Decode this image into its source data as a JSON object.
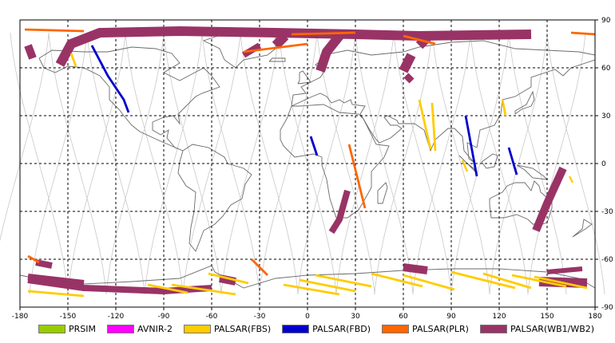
{
  "chart_data": {
    "type": "map",
    "projection": "equirectangular",
    "xlim": [
      -180,
      180
    ],
    "ylim": [
      -90,
      90
    ],
    "x_ticks": [
      -180,
      -150,
      -120,
      -90,
      -60,
      -30,
      0,
      30,
      60,
      90,
      120,
      150,
      180
    ],
    "y_ticks": [
      -90,
      -60,
      -30,
      0,
      30,
      60,
      90
    ],
    "grid": true,
    "legend_position": "bottom",
    "legend": [
      {
        "name": "PRSIM",
        "color": "#99cc00"
      },
      {
        "name": "AVNIR-2",
        "color": "#ff00ff"
      },
      {
        "name": "PALSAR(FBS)",
        "color": "#ffcc00"
      },
      {
        "name": "PALSAR(FBD)",
        "color": "#0000cc"
      },
      {
        "name": "PALSAR(PLR)",
        "color": "#ff6600"
      },
      {
        "name": "PALSAR(WB1/WB2)",
        "color": "#993366"
      }
    ],
    "swaths": [
      {
        "mode": "PALSAR(WB1/WB2)",
        "path": [
          [
            -155,
            62
          ],
          [
            -148,
            75
          ],
          [
            -130,
            82
          ],
          [
            -80,
            83
          ],
          [
            -20,
            82
          ],
          [
            30,
            81
          ],
          [
            70,
            80
          ],
          [
            140,
            81
          ]
        ],
        "width": 6
      },
      {
        "mode": "PALSAR(WB1/WB2)",
        "path": [
          [
            -175,
            74
          ],
          [
            -172,
            66
          ]
        ],
        "width": 5
      },
      {
        "mode": "PALSAR(WB1/WB2)",
        "path": [
          [
            -14,
            80
          ],
          [
            -20,
            74
          ]
        ],
        "width": 6
      },
      {
        "mode": "PALSAR(WB1/WB2)",
        "path": [
          [
            -30,
            74
          ],
          [
            -40,
            68
          ]
        ],
        "width": 4
      },
      {
        "mode": "PALSAR(WB1/WB2)",
        "path": [
          [
            20,
            80
          ],
          [
            12,
            70
          ],
          [
            8,
            58
          ]
        ],
        "width": 6
      },
      {
        "mode": "PALSAR(WB1/WB2)",
        "path": [
          [
            75,
            79
          ],
          [
            70,
            74
          ]
        ],
        "width": 6
      },
      {
        "mode": "PALSAR(WB1/WB2)",
        "path": [
          [
            65,
            68
          ],
          [
            62,
            62
          ],
          [
            60,
            58
          ]
        ],
        "width": 6
      },
      {
        "mode": "PALSAR(WB1/WB2)",
        "path": [
          [
            65,
            55
          ],
          [
            62,
            52
          ]
        ],
        "width": 5
      },
      {
        "mode": "PALSAR(WB1/WB2)",
        "path": [
          [
            160,
            -3
          ],
          [
            150,
            -25
          ],
          [
            143,
            -42
          ]
        ],
        "width": 5
      },
      {
        "mode": "PALSAR(WB1/WB2)",
        "path": [
          [
            25,
            -17
          ],
          [
            20,
            -35
          ],
          [
            15,
            -43
          ]
        ],
        "width": 4
      },
      {
        "mode": "PALSAR(WB1/WB2)",
        "path": [
          [
            -175,
            -73
          ],
          [
            -140,
            -78
          ],
          [
            -90,
            -80
          ],
          [
            -60,
            -78
          ]
        ],
        "width": 4
      },
      {
        "mode": "PALSAR(WB1/WB2)",
        "path": [
          [
            -170,
            -62
          ],
          [
            -160,
            -64
          ]
        ],
        "width": 4
      },
      {
        "mode": "PALSAR(WB1/WB2)",
        "path": [
          [
            -55,
            -72
          ],
          [
            -45,
            -74
          ]
        ],
        "width": 5
      },
      {
        "mode": "PALSAR(WB1/WB2)",
        "path": [
          [
            -140,
            -75
          ],
          [
            -175,
            -71
          ]
        ],
        "width": 4
      },
      {
        "mode": "PALSAR(WB1/WB2)",
        "path": [
          [
            60,
            -65
          ],
          [
            75,
            -67
          ]
        ],
        "width": 5
      },
      {
        "mode": "PALSAR(WB1/WB2)",
        "path": [
          [
            145,
            -74
          ],
          [
            175,
            -75
          ]
        ],
        "width": 6
      },
      {
        "mode": "PALSAR(WB1/WB2)",
        "path": [
          [
            150,
            -68
          ],
          [
            172,
            -66
          ]
        ],
        "width": 3
      },
      {
        "mode": "PALSAR(FBD)",
        "path": [
          [
            -135,
            74
          ],
          [
            -125,
            55
          ],
          [
            -115,
            40
          ],
          [
            -112,
            32
          ]
        ],
        "width": 1.4
      },
      {
        "mode": "PALSAR(FBD)",
        "path": [
          [
            2,
            17
          ],
          [
            6,
            5
          ]
        ],
        "width": 1.4
      },
      {
        "mode": "PALSAR(FBD)",
        "path": [
          [
            99,
            30
          ],
          [
            106,
            -8
          ]
        ],
        "width": 1.4
      },
      {
        "mode": "PALSAR(FBD)",
        "path": [
          [
            126,
            10
          ],
          [
            131,
            -7
          ]
        ],
        "width": 1.4
      },
      {
        "mode": "PALSAR(FBS)",
        "path": [
          [
            -148,
            69
          ],
          [
            -145,
            61
          ]
        ],
        "width": 1.4
      },
      {
        "mode": "PALSAR(FBS)",
        "path": [
          [
            70,
            40
          ],
          [
            77,
            9
          ]
        ],
        "width": 1.4
      },
      {
        "mode": "PALSAR(FBS)",
        "path": [
          [
            78,
            38
          ],
          [
            80,
            8
          ]
        ],
        "width": 1.4
      },
      {
        "mode": "PALSAR(FBS)",
        "path": [
          [
            122,
            40
          ],
          [
            124,
            30
          ]
        ],
        "width": 1.4
      },
      {
        "mode": "PALSAR(FBS)",
        "path": [
          [
            97,
            2
          ],
          [
            100,
            -5
          ]
        ],
        "width": 1.2
      },
      {
        "mode": "PALSAR(FBS)",
        "path": [
          [
            164,
            -8
          ],
          [
            166,
            -12
          ]
        ],
        "width": 1.2
      },
      {
        "mode": "PALSAR(FBS)",
        "path": [
          [
            -175,
            -80
          ],
          [
            -140,
            -83
          ]
        ],
        "width": 1.4
      },
      {
        "mode": "PALSAR(FBS)",
        "path": [
          [
            -100,
            -76
          ],
          [
            -75,
            -81
          ]
        ],
        "width": 1.4
      },
      {
        "mode": "PALSAR(FBS)",
        "path": [
          [
            -85,
            -76
          ],
          [
            -45,
            -82
          ]
        ],
        "width": 1.4
      },
      {
        "mode": "PALSAR(FBS)",
        "path": [
          [
            -62,
            -69
          ],
          [
            -37,
            -75
          ]
        ],
        "width": 1.4
      },
      {
        "mode": "PALSAR(FBS)",
        "path": [
          [
            -15,
            -76
          ],
          [
            20,
            -82
          ]
        ],
        "width": 1.4
      },
      {
        "mode": "PALSAR(FBS)",
        "path": [
          [
            -5,
            -73
          ],
          [
            30,
            -80
          ]
        ],
        "width": 1.4
      },
      {
        "mode": "PALSAR(FBS)",
        "path": [
          [
            5,
            -70
          ],
          [
            40,
            -77
          ]
        ],
        "width": 1.4
      },
      {
        "mode": "PALSAR(FBS)",
        "path": [
          [
            40,
            -69
          ],
          [
            72,
            -77
          ]
        ],
        "width": 1.4
      },
      {
        "mode": "PALSAR(FBS)",
        "path": [
          [
            60,
            -70
          ],
          [
            92,
            -79
          ]
        ],
        "width": 1.4
      },
      {
        "mode": "PALSAR(FBS)",
        "path": [
          [
            90,
            -68
          ],
          [
            130,
            -78
          ]
        ],
        "width": 1.4
      },
      {
        "mode": "PALSAR(FBS)",
        "path": [
          [
            110,
            -69
          ],
          [
            140,
            -78
          ]
        ],
        "width": 1.4
      },
      {
        "mode": "PALSAR(FBS)",
        "path": [
          [
            128,
            -70
          ],
          [
            162,
            -77
          ]
        ],
        "width": 1.4
      },
      {
        "mode": "PALSAR(FBS)",
        "path": [
          [
            142,
            -71
          ],
          [
            175,
            -78
          ]
        ],
        "width": 1.4
      },
      {
        "mode": "PALSAR(PLR)",
        "path": [
          [
            -177,
            84
          ],
          [
            -140,
            83
          ]
        ],
        "width": 1.4
      },
      {
        "mode": "PALSAR(PLR)",
        "path": [
          [
            -10,
            81
          ],
          [
            30,
            82
          ]
        ],
        "width": 1.4
      },
      {
        "mode": "PALSAR(PLR)",
        "path": [
          [
            -40,
            70
          ],
          [
            0,
            75
          ]
        ],
        "width": 1.4
      },
      {
        "mode": "PALSAR(PLR)",
        "path": [
          [
            60,
            80
          ],
          [
            80,
            75
          ]
        ],
        "width": 1.4
      },
      {
        "mode": "PALSAR(PLR)",
        "path": [
          [
            165,
            82
          ],
          [
            180,
            81
          ]
        ],
        "width": 1.4
      },
      {
        "mode": "PALSAR(PLR)",
        "path": [
          [
            26,
            12
          ],
          [
            36,
            -28
          ]
        ],
        "width": 1.4
      },
      {
        "mode": "PALSAR(PLR)",
        "path": [
          [
            -175,
            -58
          ],
          [
            -168,
            -62
          ]
        ],
        "width": 1.4
      },
      {
        "mode": "PALSAR(PLR)",
        "path": [
          [
            -35,
            -60
          ],
          [
            -25,
            -70
          ]
        ],
        "width": 1.4
      }
    ]
  }
}
